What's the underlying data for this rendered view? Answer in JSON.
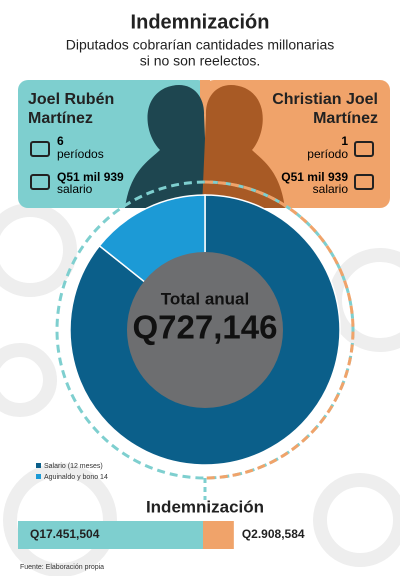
{
  "header": {
    "title": "Indemnización",
    "subtitle": [
      "Diputados cobrarían cantidades millonarias",
      "si no son reelectos."
    ]
  },
  "people": [
    {
      "name": [
        "Joel Rubén",
        "Martínez"
      ],
      "periods": "6",
      "periods_label": "períodos",
      "salary": "Q51 mil 939",
      "salary_label": "salario"
    },
    {
      "name": [
        "Christian Joel",
        "Martínez"
      ],
      "periods": "1",
      "periods_label": "período",
      "salary": "Q51 mil 939",
      "salary_label": "salario"
    }
  ],
  "chart_data": [
    {
      "type": "pie",
      "center_label": "Total anual",
      "center_value": "Q727,146",
      "categories": [
        "Salario (12 meses)",
        "Aguinaldo y bono 14"
      ],
      "values": [
        623268,
        103878
      ],
      "colors": [
        "#0b5f8a",
        "#1c9ad6"
      ]
    },
    {
      "type": "bar",
      "title": "Indemnización",
      "values": [
        17451504,
        2908584
      ],
      "value_labels": [
        "Q17.451,504",
        "Q2.908,584"
      ],
      "colors": [
        "#7ecfcf",
        "#f0a36a"
      ]
    }
  ],
  "source": "Fuente: Elaboración propia"
}
